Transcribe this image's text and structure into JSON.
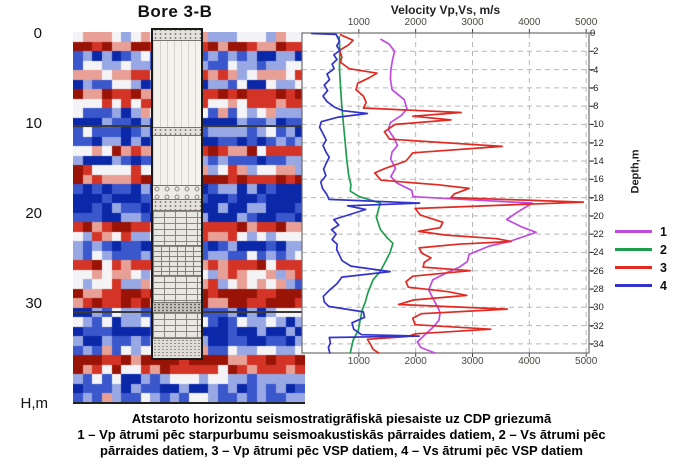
{
  "bore_panel": {
    "title": "Bore 3-B",
    "depth_axis_label": "H,m",
    "depth_ticks": [
      0,
      10,
      20,
      30
    ],
    "depth_marker_lines_m": [
      10,
      30.7
    ],
    "seismic_palette": [
      "#0a28a8",
      "#3a57cc",
      "#97a8e4",
      "#f4f4f6",
      "#e8a096",
      "#d33426",
      "#991407"
    ],
    "lithology_layers": [
      {
        "from_m": -0.8,
        "to_m": 0.55,
        "pattern": "gravel-dots"
      },
      {
        "from_m": 0.55,
        "to_m": 10.2,
        "pattern": "sand-vlines"
      },
      {
        "from_m": 10.2,
        "to_m": 11.1,
        "pattern": "gravel-dots"
      },
      {
        "from_m": 11.1,
        "to_m": 16.7,
        "pattern": "sand-vlines"
      },
      {
        "from_m": 16.7,
        "to_m": 18.2,
        "pattern": "pebbles"
      },
      {
        "from_m": 18.2,
        "to_m": 19.4,
        "pattern": "gravel-dots"
      },
      {
        "from_m": 19.4,
        "to_m": 23.3,
        "pattern": "bricks"
      },
      {
        "from_m": 23.3,
        "to_m": 26.7,
        "pattern": "bricks-fine"
      },
      {
        "from_m": 26.7,
        "to_m": 29.7,
        "pattern": "bricks"
      },
      {
        "from_m": 29.7,
        "to_m": 30.8,
        "pattern": "dark-dots"
      },
      {
        "from_m": 30.8,
        "to_m": 33.7,
        "pattern": "bricks"
      },
      {
        "from_m": 33.7,
        "to_m": 35.9,
        "pattern": "fine-dots"
      }
    ]
  },
  "chart_data": {
    "type": "line",
    "title": "Velocity Vp,Vs, m/s",
    "ylabel": "Depth,m",
    "x_unit": "m/s",
    "xlim": [
      0,
      5050
    ],
    "x_ticks": [
      1000,
      2000,
      3000,
      4000,
      5000
    ],
    "x_label_sides": [
      "top",
      "bottom"
    ],
    "ylim": [
      0,
      -35
    ],
    "y_ticks": [
      0,
      -2,
      -4,
      -6,
      -8,
      -10,
      -12,
      -14,
      -16,
      -18,
      -20,
      -22,
      -24,
      -26,
      -28,
      -30,
      -32,
      -34
    ],
    "depth_positive_down": true,
    "grid": "dashed",
    "legend_position": "right",
    "series": [
      {
        "name": "1",
        "color": "#c04ae0",
        "points": [
          [
            0.7,
            1390
          ],
          [
            1.2,
            1530
          ],
          [
            2,
            1630
          ],
          [
            3,
            1590
          ],
          [
            4,
            1565
          ],
          [
            5,
            1555
          ],
          [
            6.2,
            1585
          ],
          [
            7.3,
            1800
          ],
          [
            8.3,
            1845
          ],
          [
            9,
            1750
          ],
          [
            9.8,
            1555
          ],
          [
            10.6,
            1520
          ],
          [
            11.5,
            1620
          ],
          [
            12.3,
            1680
          ],
          [
            13,
            1585
          ],
          [
            13.8,
            1560
          ],
          [
            14.8,
            1645
          ],
          [
            15.7,
            1565
          ],
          [
            16.4,
            1665
          ],
          [
            17.2,
            1930
          ],
          [
            17.9,
            1955
          ],
          [
            18.6,
            4050
          ],
          [
            19.6,
            3790
          ],
          [
            20.4,
            3600
          ],
          [
            21.2,
            3860
          ],
          [
            21.8,
            4120
          ],
          [
            22.8,
            3650
          ],
          [
            23.3,
            3300
          ],
          [
            24.2,
            2940
          ],
          [
            25,
            2910
          ],
          [
            25.6,
            2770
          ],
          [
            26.4,
            2490
          ],
          [
            27,
            2300
          ],
          [
            28.1,
            2230
          ],
          [
            29.2,
            2320
          ],
          [
            30,
            2390
          ],
          [
            30.6,
            2430
          ],
          [
            31.4,
            2410
          ],
          [
            32.1,
            2320
          ],
          [
            33.2,
            2130
          ],
          [
            33.8,
            2030
          ],
          [
            34.4,
            2090
          ],
          [
            35,
            2340
          ]
        ]
      },
      {
        "name": "2",
        "color": "#1f9d4f",
        "points": [
          [
            0.4,
            655
          ],
          [
            2,
            665
          ],
          [
            4,
            660
          ],
          [
            6,
            680
          ],
          [
            8,
            700
          ],
          [
            10,
            730
          ],
          [
            12,
            760
          ],
          [
            14,
            790
          ],
          [
            15.5,
            820
          ],
          [
            16.6,
            860
          ],
          [
            17.3,
            850
          ],
          [
            17.9,
            1010
          ],
          [
            18.6,
            1380
          ],
          [
            19.4,
            1340
          ],
          [
            20.2,
            1310
          ],
          [
            21.5,
            1380
          ],
          [
            22.4,
            1500
          ],
          [
            23,
            1600
          ],
          [
            24,
            1550
          ],
          [
            25.1,
            1460
          ],
          [
            26.1,
            1375
          ],
          [
            27,
            1250
          ],
          [
            28.4,
            1160
          ],
          [
            29.5,
            1110
          ],
          [
            30.3,
            1060
          ],
          [
            31.5,
            1020
          ],
          [
            32.5,
            990
          ],
          [
            33.6,
            900
          ],
          [
            34.3,
            875
          ],
          [
            35,
            850
          ]
        ]
      },
      {
        "name": "3",
        "color": "#e02a22",
        "points": [
          [
            0.2,
            680
          ],
          [
            0.8,
            900
          ],
          [
            1.3,
            820
          ],
          [
            1.9,
            660
          ],
          [
            2.6,
            700
          ],
          [
            3.2,
            680
          ],
          [
            3.9,
            830
          ],
          [
            4.4,
            1320
          ],
          [
            4.9,
            1180
          ],
          [
            5.5,
            980
          ],
          [
            6.2,
            950
          ],
          [
            6.9,
            1080
          ],
          [
            7.6,
            1130
          ],
          [
            8.2,
            1080
          ],
          [
            8.7,
            2800
          ],
          [
            9.1,
            1950
          ],
          [
            9.5,
            2620
          ],
          [
            10,
            1640
          ],
          [
            10.8,
            1450
          ],
          [
            11.6,
            1540
          ],
          [
            12.4,
            3520
          ],
          [
            13.1,
            1950
          ],
          [
            14,
            1830
          ],
          [
            14.8,
            1470
          ],
          [
            15.3,
            1280
          ],
          [
            16.1,
            1390
          ],
          [
            16.6,
            2400
          ],
          [
            17,
            2940
          ],
          [
            17.6,
            2680
          ],
          [
            18,
            2620
          ],
          [
            18.5,
            4950
          ],
          [
            19.2,
            1990
          ],
          [
            19.9,
            2080
          ],
          [
            20.7,
            2480
          ],
          [
            21.3,
            2430
          ],
          [
            21.7,
            2050
          ],
          [
            22.1,
            2540
          ],
          [
            22.5,
            3430
          ],
          [
            22.8,
            3680
          ],
          [
            23.1,
            2750
          ],
          [
            23.5,
            2060
          ],
          [
            24.1,
            2110
          ],
          [
            24.6,
            2270
          ],
          [
            25.1,
            2150
          ],
          [
            25.6,
            2130
          ],
          [
            26,
            2960
          ],
          [
            26.6,
            1950
          ],
          [
            27.2,
            1830
          ],
          [
            27.8,
            1870
          ],
          [
            28.3,
            2570
          ],
          [
            28.7,
            2900
          ],
          [
            29.2,
            1960
          ],
          [
            29.7,
            1700
          ],
          [
            30.2,
            3610
          ],
          [
            30.7,
            2100
          ],
          [
            31.2,
            1950
          ],
          [
            31.9,
            1990
          ],
          [
            32.4,
            3320
          ],
          [
            32.9,
            2000
          ],
          [
            33.2,
            1860
          ],
          [
            33.5,
            1150
          ],
          [
            34.1,
            1210
          ],
          [
            34.6,
            1250
          ],
          [
            35,
            1350
          ]
        ]
      },
      {
        "name": "4",
        "color": "#3333cc",
        "points": [
          [
            0.05,
            170
          ],
          [
            0.15,
            600
          ],
          [
            0.9,
            660
          ],
          [
            1.4,
            610
          ],
          [
            1.9,
            665
          ],
          [
            2.4,
            560
          ],
          [
            2.9,
            615
          ],
          [
            3.4,
            530
          ],
          [
            3.9,
            565
          ],
          [
            4.5,
            440
          ],
          [
            5.1,
            485
          ],
          [
            5.7,
            390
          ],
          [
            6.3,
            450
          ],
          [
            6.9,
            370
          ],
          [
            7.5,
            440
          ],
          [
            8.1,
            570
          ],
          [
            8.5,
            720
          ],
          [
            8.8,
            1150
          ],
          [
            9.2,
            640
          ],
          [
            9.7,
            340
          ],
          [
            10.3,
            310
          ],
          [
            11,
            370
          ],
          [
            11.7,
            425
          ],
          [
            12.3,
            370
          ],
          [
            13,
            420
          ],
          [
            13.6,
            480
          ],
          [
            14.2,
            430
          ],
          [
            14.9,
            380
          ],
          [
            15.6,
            420
          ],
          [
            16.3,
            330
          ],
          [
            17,
            360
          ],
          [
            17.7,
            440
          ],
          [
            18.2,
            475
          ],
          [
            18.6,
            2070
          ],
          [
            18.9,
            800
          ],
          [
            19.3,
            1120
          ],
          [
            19.8,
            870
          ],
          [
            20.4,
            560
          ],
          [
            21,
            645
          ],
          [
            21.5,
            520
          ],
          [
            22,
            600
          ],
          [
            22.6,
            530
          ],
          [
            23.1,
            620
          ],
          [
            23.7,
            610
          ],
          [
            24.3,
            660
          ],
          [
            24.9,
            705
          ],
          [
            25.5,
            860
          ],
          [
            26.1,
            1550
          ],
          [
            26.7,
            700
          ],
          [
            27.4,
            620
          ],
          [
            28.1,
            490
          ],
          [
            28.8,
            375
          ],
          [
            29.4,
            390
          ],
          [
            29.9,
            470
          ],
          [
            30.5,
            1080
          ],
          [
            31.1,
            1100
          ],
          [
            31.7,
            880
          ],
          [
            32.4,
            910
          ],
          [
            33,
            1050
          ],
          [
            33.15,
            2060
          ],
          [
            33.3,
            480
          ],
          [
            33.9,
            500
          ],
          [
            34.4,
            465
          ],
          [
            35,
            490
          ]
        ]
      }
    ]
  },
  "caption": {
    "line1": "Atstaroto horizontu seismostratigrāfiskā piesaiste uz  CDP griezumā",
    "line2": "1 – Vp ātrumi pēc starpurbumu seismoakustiskās pārraides datiem, 2 – Vs ātrumi pēc",
    "line3": "pārraides datiem, 3 – Vp ātrumi pēc VSP datiem, 4 – Vs ātrumi pēc VSP datiem"
  }
}
